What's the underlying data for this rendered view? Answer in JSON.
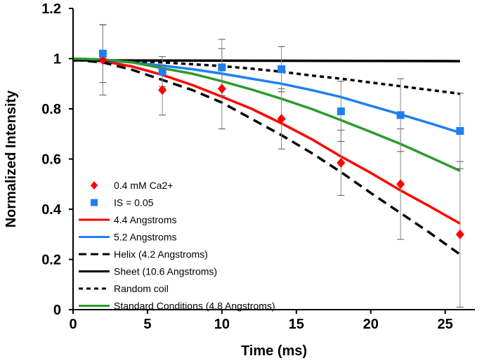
{
  "chart_data": {
    "type": "scatter",
    "title": "",
    "xlabel": "Time (ms)",
    "ylabel": "Normalized Intensity",
    "xlim": [
      0,
      27
    ],
    "ylim": [
      0,
      1.2
    ],
    "xticks": [
      0,
      5,
      10,
      15,
      20,
      25
    ],
    "yticks": [
      0,
      0.2,
      0.4,
      0.6,
      0.8,
      1,
      1.2
    ],
    "xtick_labels": [
      "0",
      "5",
      "10",
      "15",
      "20",
      "25"
    ],
    "ytick_labels": [
      "0",
      "0.2",
      "0.4",
      "0.6",
      "0.8",
      "1",
      "1.2"
    ],
    "grid": false,
    "legend_position": "bottom-left",
    "series": [
      {
        "name": "0.4 mM Ca2+",
        "kind": "points",
        "marker": "diamond",
        "color": "#ff0000",
        "x": [
          2,
          6,
          10,
          14,
          18,
          22,
          26
        ],
        "y": [
          0.995,
          0.875,
          0.88,
          0.76,
          0.585,
          0.5,
          0.3
        ],
        "err": [
          0.14,
          0.1,
          0.16,
          0.12,
          0.13,
          0.22,
          0.29
        ]
      },
      {
        "name": "IS = 0.05",
        "kind": "points",
        "marker": "square",
        "color": "#1f7ff0",
        "x": [
          2,
          6,
          10,
          14,
          18,
          22,
          26
        ],
        "y": [
          1.02,
          0.948,
          0.965,
          0.958,
          0.79,
          0.775,
          0.712
        ],
        "err": [
          0.115,
          0.06,
          0.112,
          0.09,
          0.12,
          0.145,
          0.15
        ]
      },
      {
        "name": "4.4 Angstroms",
        "kind": "line",
        "dash": "solid",
        "color": "#ff0000",
        "x": [
          0,
          2,
          4,
          6,
          8,
          10,
          12,
          14,
          16,
          18,
          20,
          22,
          24,
          26
        ],
        "y": [
          0.996,
          0.99,
          0.968,
          0.935,
          0.895,
          0.848,
          0.8,
          0.742,
          0.68,
          0.61,
          0.545,
          0.475,
          0.41,
          0.343
        ]
      },
      {
        "name": "5.2 Angstroms",
        "kind": "line",
        "dash": "solid",
        "color": "#1f7ff0",
        "x": [
          0,
          2,
          4,
          6,
          8,
          10,
          12,
          14,
          16,
          18,
          20,
          22,
          24,
          26
        ],
        "y": [
          0.996,
          0.993,
          0.985,
          0.972,
          0.958,
          0.94,
          0.92,
          0.9,
          0.875,
          0.847,
          0.812,
          0.778,
          0.742,
          0.705
        ]
      },
      {
        "name": "Helix (4.2 Angstroms)",
        "kind": "line",
        "dash": "dash",
        "color": "#000000",
        "x": [
          0,
          2,
          4,
          6,
          8,
          10,
          12,
          14,
          16,
          18,
          20,
          22,
          24,
          26
        ],
        "y": [
          0.996,
          0.985,
          0.955,
          0.915,
          0.875,
          0.825,
          0.76,
          0.695,
          0.625,
          0.548,
          0.465,
          0.385,
          0.305,
          0.22
        ]
      },
      {
        "name": "Sheet (10.6 Angstroms)",
        "kind": "line",
        "dash": "solid",
        "color": "#000000",
        "x": [
          0,
          26
        ],
        "y": [
          0.993,
          0.99
        ]
      },
      {
        "name": "Random coil",
        "kind": "line",
        "dash": "shortdash",
        "color": "#000000",
        "x": [
          0,
          2,
          4,
          6,
          8,
          10,
          12,
          14,
          16,
          18,
          20,
          22,
          24,
          26
        ],
        "y": [
          0.993,
          0.993,
          0.99,
          0.985,
          0.978,
          0.97,
          0.96,
          0.948,
          0.933,
          0.92,
          0.905,
          0.89,
          0.875,
          0.86
        ]
      },
      {
        "name": "Standard Conditions (4.8 Angstroms)",
        "kind": "line",
        "dash": "solid",
        "color": "#2e9a2e",
        "x": [
          0,
          2,
          4,
          6,
          8,
          10,
          12,
          14,
          16,
          18,
          20,
          22,
          24,
          26
        ],
        "y": [
          1.0,
          0.997,
          0.985,
          0.962,
          0.94,
          0.91,
          0.877,
          0.84,
          0.8,
          0.755,
          0.708,
          0.66,
          0.607,
          0.553
        ]
      }
    ]
  }
}
